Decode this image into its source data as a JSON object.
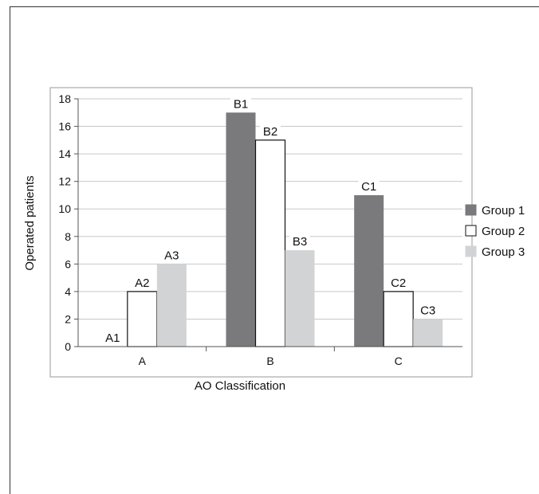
{
  "chart_data": {
    "type": "bar",
    "categories": [
      "A",
      "B",
      "C"
    ],
    "series": [
      {
        "name": "Group 1",
        "values": [
          0,
          17,
          11
        ],
        "labels": [
          "A1",
          "B1",
          "C1"
        ],
        "color": "#7a7a7c",
        "stroke": "#7a7a7c"
      },
      {
        "name": "Group 2",
        "values": [
          4,
          15,
          4
        ],
        "labels": [
          "A2",
          "B2",
          "C2"
        ],
        "color": "#ffffff",
        "stroke": "#111111"
      },
      {
        "name": "Group 3",
        "values": [
          6,
          7,
          2
        ],
        "labels": [
          "A3",
          "B3",
          "C3"
        ],
        "color": "#d2d3d5",
        "stroke": "#d2d3d5"
      }
    ],
    "xlabel": "AO Classification",
    "ylabel": "Operated patients",
    "ylim": [
      0,
      18
    ],
    "yticks": [
      0,
      2,
      4,
      6,
      8,
      10,
      12,
      14,
      16,
      18
    ],
    "grid": true,
    "legend": "right"
  }
}
